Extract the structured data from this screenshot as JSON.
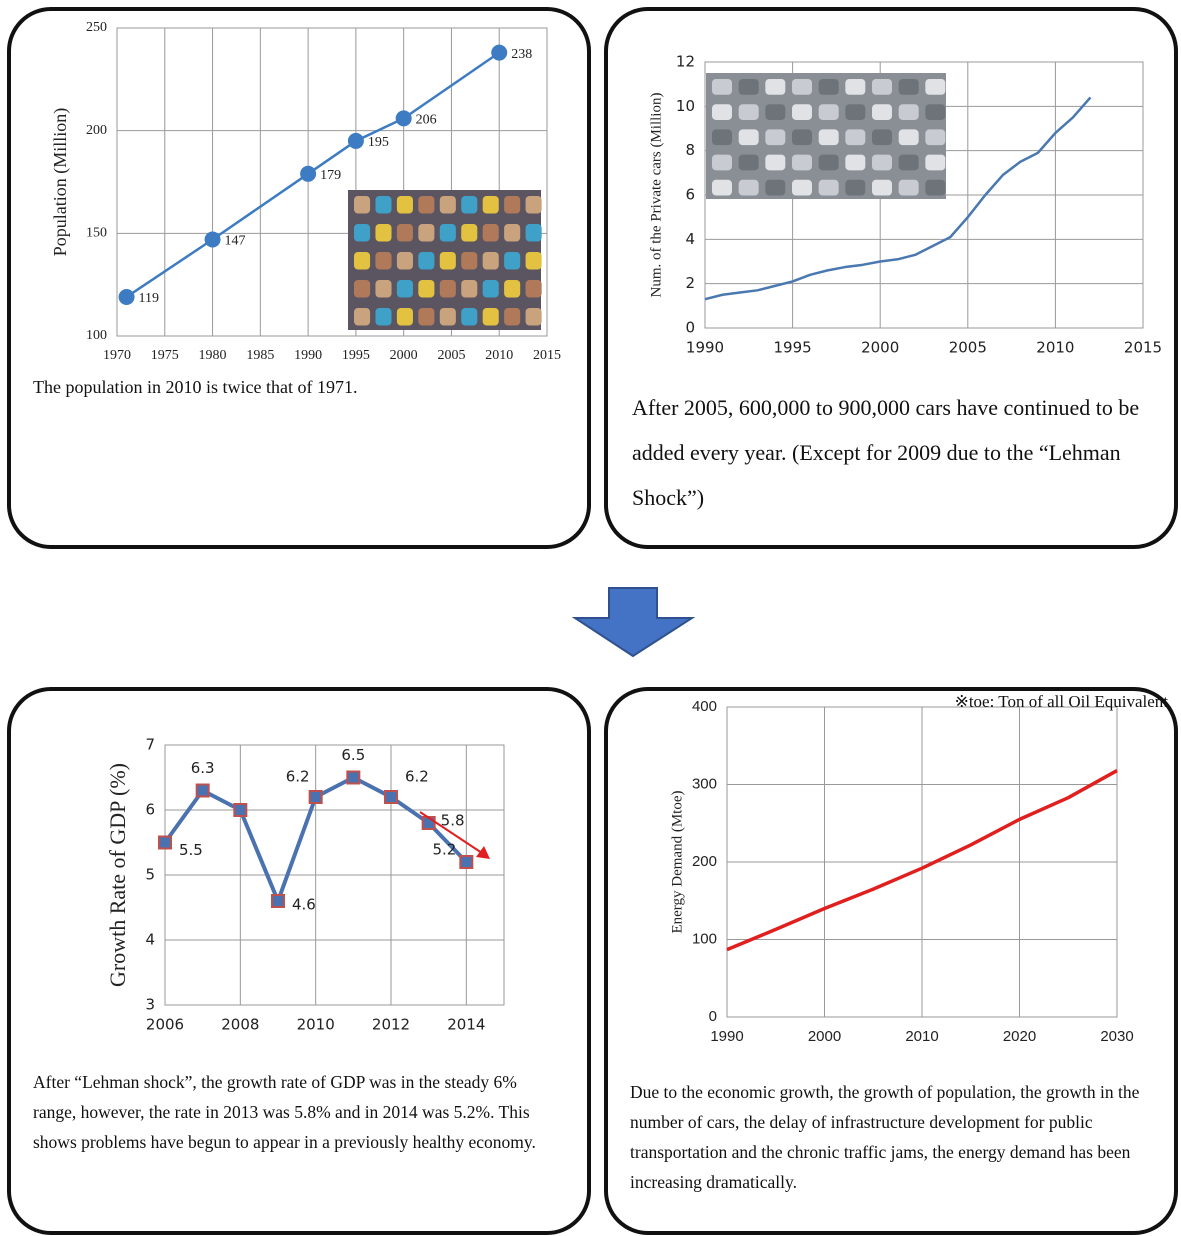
{
  "chart_data": [
    {
      "type": "line",
      "ylabel": "Population (Million)",
      "x": [
        1971,
        1980,
        1990,
        1995,
        2000,
        2010
      ],
      "values": [
        119,
        147,
        179,
        195,
        206,
        238
      ],
      "color": "#3d7cc2",
      "marker": "circle",
      "data_labels": true,
      "xlim": [
        1970,
        2015
      ],
      "xticks": [
        1970,
        1975,
        1980,
        1985,
        1990,
        1995,
        2000,
        2005,
        2010,
        2015
      ],
      "ylim": [
        100,
        250
      ],
      "yticks": [
        100,
        150,
        200,
        250
      ],
      "grid": true,
      "caption": "The population in 2010 is twice that of 1971."
    },
    {
      "type": "line",
      "ylabel": "Num. of the Private cars (Million)",
      "x": [
        1990,
        1991,
        1992,
        1993,
        1994,
        1995,
        1996,
        1997,
        1998,
        1999,
        2000,
        2001,
        2002,
        2003,
        2004,
        2005,
        2006,
        2007,
        2008,
        2009,
        2010,
        2011,
        2012
      ],
      "values": [
        1.3,
        1.5,
        1.6,
        1.7,
        1.9,
        2.1,
        2.4,
        2.6,
        2.75,
        2.85,
        3.0,
        3.1,
        3.3,
        3.7,
        4.1,
        5.0,
        6.0,
        6.9,
        7.5,
        7.9,
        8.8,
        9.5,
        10.4
      ],
      "color": "#4a78b0",
      "xlim": [
        1990,
        2015
      ],
      "xticks": [
        1990,
        1995,
        2000,
        2005,
        2010,
        2015
      ],
      "ylim": [
        0,
        12
      ],
      "yticks": [
        0,
        2,
        4,
        6,
        8,
        10,
        12
      ],
      "grid": true,
      "caption": "After 2005, 600,000 to 900,000 cars have continued to be added every year. (Except for 2009 due to the “Lehman Shock”)"
    },
    {
      "type": "line",
      "ylabel": "Growth Rate of GDP (%)",
      "x": [
        2006,
        2007,
        2008,
        2009,
        2010,
        2011,
        2012,
        2013,
        2014
      ],
      "values": [
        5.5,
        6.3,
        6.0,
        4.6,
        6.2,
        6.5,
        6.2,
        5.8,
        5.2
      ],
      "value_labels": [
        "5.5",
        "6.3",
        null,
        "4.6",
        "6.2",
        "6.5",
        "6.2",
        "5.8",
        "5.2"
      ],
      "color": "#4a72b0",
      "marker": "square",
      "marker_edge_color": "#c0504d",
      "xlim": [
        2006,
        2015
      ],
      "xticks": [
        2006,
        2008,
        2010,
        2012,
        2014
      ],
      "ylim": [
        3,
        7
      ],
      "yticks": [
        3,
        4,
        5,
        6,
        7
      ],
      "grid": true,
      "caption": "After “Lehman shock”, the growth rate of GDP was in the steady 6% range, however, the rate in 2013 was 5.8% and in 2014 was 5.2%. This shows problems have begun to appear in a previously healthy economy."
    },
    {
      "type": "line",
      "ylabel": "Energy Demand (Mtoe)",
      "note": "※toe: Ton of all Oil Equivalent",
      "x": [
        1990,
        1995,
        2000,
        2005,
        2010,
        2015,
        2020,
        2025,
        2030
      ],
      "values": [
        87,
        113,
        140,
        165,
        192,
        222,
        255,
        283,
        318
      ],
      "color": "#e0201e",
      "xlim": [
        1990,
        2030
      ],
      "xticks": [
        1990,
        2000,
        2010,
        2020,
        2030
      ],
      "ylim": [
        0,
        400
      ],
      "yticks": [
        0,
        100,
        200,
        300,
        400
      ],
      "grid": true,
      "caption": "Due to the economic growth, the growth of population, the growth in the number of cars, the delay of infrastructure development for public transportation and the chronic traffic jams, the energy demand has been increasing dramatically."
    }
  ]
}
